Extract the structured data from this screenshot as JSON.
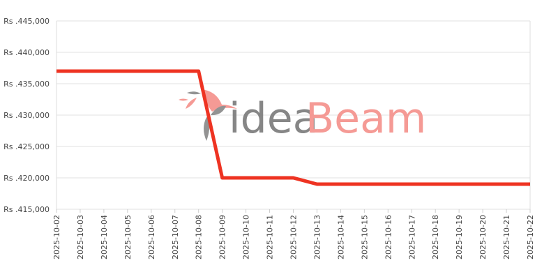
{
  "chart_data": {
    "type": "line",
    "title": "",
    "xlabel": "",
    "ylabel": "",
    "ylim": [
      415000,
      445000
    ],
    "y_ticks": [
      415000,
      420000,
      425000,
      430000,
      435000,
      440000,
      445000
    ],
    "y_tick_labels": [
      "Rs .415,000",
      "Rs .420,000",
      "Rs .425,000",
      "Rs .430,000",
      "Rs .435,000",
      "Rs .440,000",
      "Rs .445,000"
    ],
    "grid": true,
    "categories": [
      "2025-10-02",
      "2025-10-03",
      "2025-10-04",
      "2025-10-05",
      "2025-10-06",
      "2025-10-07",
      "2025-10-08",
      "2025-10-09",
      "2025-10-10",
      "2025-10-11",
      "2025-10-12",
      "2025-10-13",
      "2025-10-14",
      "2025-10-15",
      "2025-10-16",
      "2025-10-17",
      "2025-10-18",
      "2025-10-19",
      "2025-10-20",
      "2025-10-21",
      "2025-10-22"
    ],
    "series": [
      {
        "values": [
          437000,
          437000,
          437000,
          437000,
          437000,
          437000,
          437000,
          420000,
          420000,
          420000,
          420000,
          419000,
          419000,
          419000,
          419000,
          419000,
          419000,
          419000,
          419000,
          419000,
          419000
        ],
        "color": "#ee3322"
      }
    ]
  },
  "watermark": {
    "text_left": "idea",
    "text_right": "Beam",
    "color_left": "#7a7a7a",
    "color_right": "#f4908a"
  }
}
